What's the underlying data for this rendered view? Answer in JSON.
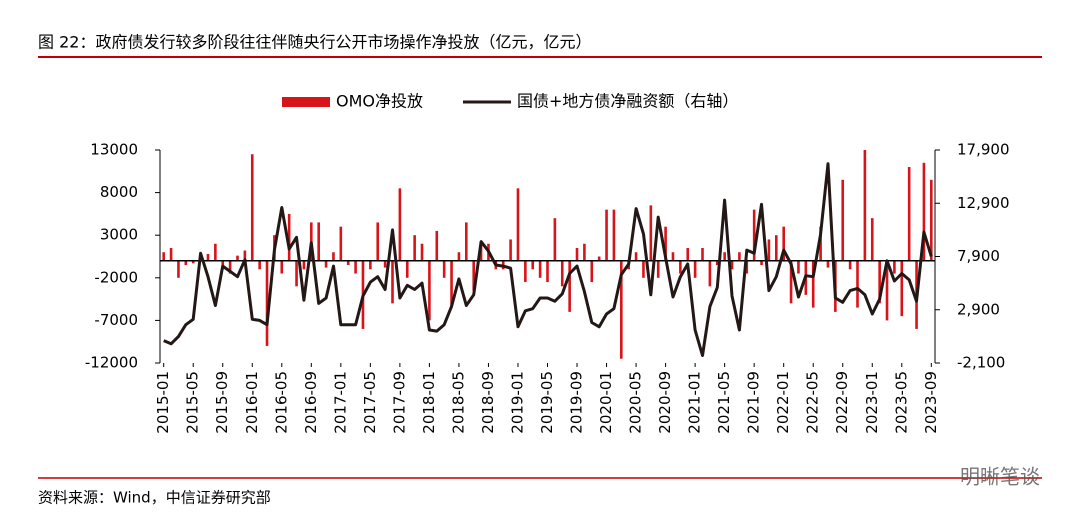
{
  "chart_data": {
    "type": "bar-line",
    "title": "图 22：政府债发行较多阶段往往伴随央行公开市场操作净投放（亿元，亿元）",
    "source": "资料来源：Wind，中信证券研究部",
    "watermark": "明晰笔谈",
    "categories": [
      "2015-01",
      null,
      null,
      null,
      "2015-05",
      null,
      null,
      null,
      "2015-09",
      null,
      null,
      null,
      "2016-01",
      null,
      null,
      null,
      "2016-05",
      null,
      null,
      null,
      "2016-09",
      null,
      null,
      null,
      "2017-01",
      null,
      null,
      null,
      "2017-05",
      null,
      null,
      null,
      "2017-09",
      null,
      null,
      null,
      "2018-01",
      null,
      null,
      null,
      "2018-05",
      null,
      null,
      null,
      "2018-09",
      null,
      null,
      null,
      "2019-01",
      null,
      null,
      null,
      "2019-05",
      null,
      null,
      null,
      "2019-09",
      null,
      null,
      null,
      "2020-01",
      null,
      null,
      null,
      "2020-05",
      null,
      null,
      null,
      "2020-09",
      null,
      null,
      null,
      "2021-01",
      null,
      null,
      null,
      "2021-05",
      null,
      null,
      null,
      "2021-09",
      null,
      null,
      null,
      "2022-01",
      null,
      null,
      null,
      "2022-05",
      null,
      null,
      null,
      "2022-09",
      null,
      null,
      null,
      "2023-01",
      null,
      null,
      null,
      "2023-05",
      null,
      null,
      null,
      "2023-09"
    ],
    "series": [
      {
        "name": "OMO净投放",
        "type": "bar",
        "color": "#d7141a",
        "values": [
          1000,
          1500,
          -2000,
          -500,
          -300,
          200,
          800,
          2000,
          -1000,
          -1500,
          600,
          1200,
          12500,
          -1000,
          -10000,
          3000,
          -1500,
          5500,
          -3000,
          -1000,
          4500,
          4500,
          -800,
          1000,
          4000,
          -500,
          -1500,
          -8000,
          -1000,
          4500,
          -800,
          -5000,
          8500,
          -2000,
          3000,
          2000,
          -7000,
          3500,
          -2000,
          -5500,
          1000,
          4500,
          -3500,
          2000,
          2000,
          -1000,
          -1000,
          2500,
          8500,
          -2500,
          -1000,
          -2000,
          -2500,
          5000,
          -3000,
          -6000,
          1500,
          2000,
          -2500,
          500,
          6000,
          6000,
          -11500,
          -1000,
          1000,
          -2000,
          6500,
          -2000,
          4000,
          1000,
          -1500,
          1500,
          -2000,
          1500,
          -3000,
          -500,
          1000,
          -1000,
          1000,
          -1500,
          6000,
          -500,
          2500,
          3000,
          4000,
          -5000,
          -1500,
          -4000,
          -5500,
          4000,
          -800,
          -6000,
          9500,
          -1000,
          -5500,
          13000,
          5000,
          -5000,
          -7000,
          -1500,
          -6500,
          11000,
          -8000,
          11500,
          9500
        ]
      },
      {
        "name": "国债+地方债净融资额（右轴）",
        "type": "line",
        "axis": "y2",
        "color": "#231815",
        "values": [
          0,
          -300,
          400,
          1500,
          2000,
          8200,
          6000,
          3300,
          7000,
          6500,
          6000,
          7600,
          2000,
          1900,
          1500,
          8500,
          12500,
          8600,
          9700,
          3800,
          9200,
          3500,
          4000,
          7000,
          1500,
          1500,
          1500,
          4200,
          5500,
          6000,
          4800,
          10400,
          4000,
          5200,
          4800,
          5400,
          1000,
          900,
          1500,
          3200,
          5800,
          3300,
          4300,
          9300,
          8400,
          7100,
          7000,
          6800,
          1300,
          2800,
          3000,
          4000,
          4000,
          3700,
          4400,
          6300,
          7000,
          4600,
          1700,
          1300,
          2500,
          3000,
          6200,
          7200,
          12400,
          10000,
          4300,
          11600,
          7800,
          4100,
          6000,
          7200,
          1000,
          -1400,
          3200,
          5000,
          13200,
          4200,
          1000,
          8500,
          8200,
          12800,
          4700,
          6000,
          8500,
          7200,
          4100,
          6100,
          6000,
          10000,
          16600,
          4000,
          3600,
          4700,
          4900,
          4300,
          2500,
          3900,
          7500,
          5600,
          6300,
          5700,
          3700,
          10200,
          7900
        ]
      }
    ],
    "ylim": [
      -12000,
      13000
    ],
    "yticks": [
      -12000,
      -7000,
      -2000,
      3000,
      8000,
      13000
    ],
    "y2lim": [
      -2100,
      17900
    ],
    "y2ticks": [
      {
        "value": -2100,
        "label": "-2,100"
      },
      {
        "value": 2900,
        "label": "2,900"
      },
      {
        "value": 7900,
        "label": "7,900"
      },
      {
        "value": 12900,
        "label": "12,900"
      },
      {
        "value": 17900,
        "label": "17,900"
      }
    ],
    "legend": "top"
  }
}
